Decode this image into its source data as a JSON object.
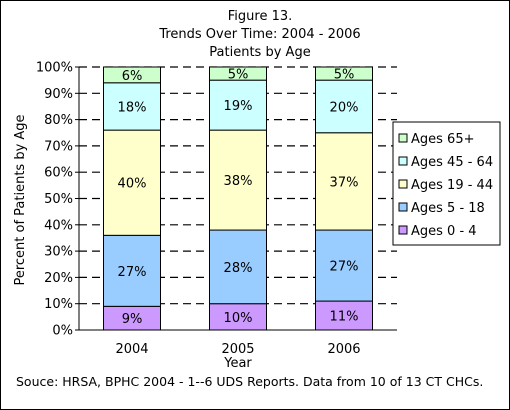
{
  "chart_data": {
    "type": "bar",
    "stacked": true,
    "title_lines": [
      "Figure 13.",
      "Trends Over Time: 2004 - 2006",
      "Patients by Age"
    ],
    "xlabel": "Year",
    "ylabel": "Percent of Patients by Age",
    "ylim": [
      0,
      100
    ],
    "yticks": [
      "0%",
      "10%",
      "20%",
      "30%",
      "40%",
      "50%",
      "60%",
      "70%",
      "80%",
      "90%",
      "100%"
    ],
    "categories": [
      "2004",
      "2005",
      "2006"
    ],
    "grid": "dashed horizontal",
    "legend_position": "right",
    "series": [
      {
        "name": "Ages 0 - 4",
        "color": "#cc99ff",
        "values": [
          9,
          10,
          11
        ],
        "labels": [
          "9%",
          "10%",
          "11%"
        ]
      },
      {
        "name": "Ages 5 - 18",
        "color": "#99ccff",
        "values": [
          27,
          28,
          27
        ],
        "labels": [
          "27%",
          "28%",
          "27%"
        ]
      },
      {
        "name": "Ages 19 - 44",
        "color": "#ffffcc",
        "values": [
          40,
          38,
          37
        ],
        "labels": [
          "40%",
          "38%",
          "37%"
        ]
      },
      {
        "name": "Ages 45 - 64",
        "color": "#ccffff",
        "values": [
          18,
          19,
          20
        ],
        "labels": [
          "18%",
          "19%",
          "20%"
        ]
      },
      {
        "name": "Ages 65+",
        "color": "#ccffcc",
        "values": [
          6,
          5,
          5
        ],
        "labels": [
          "6%",
          "5%",
          "5%"
        ]
      }
    ],
    "source": "Souce: HRSA, BPHC 2004 - 1--6 UDS Reports.  Data from 10 of 13 CT CHCs."
  }
}
